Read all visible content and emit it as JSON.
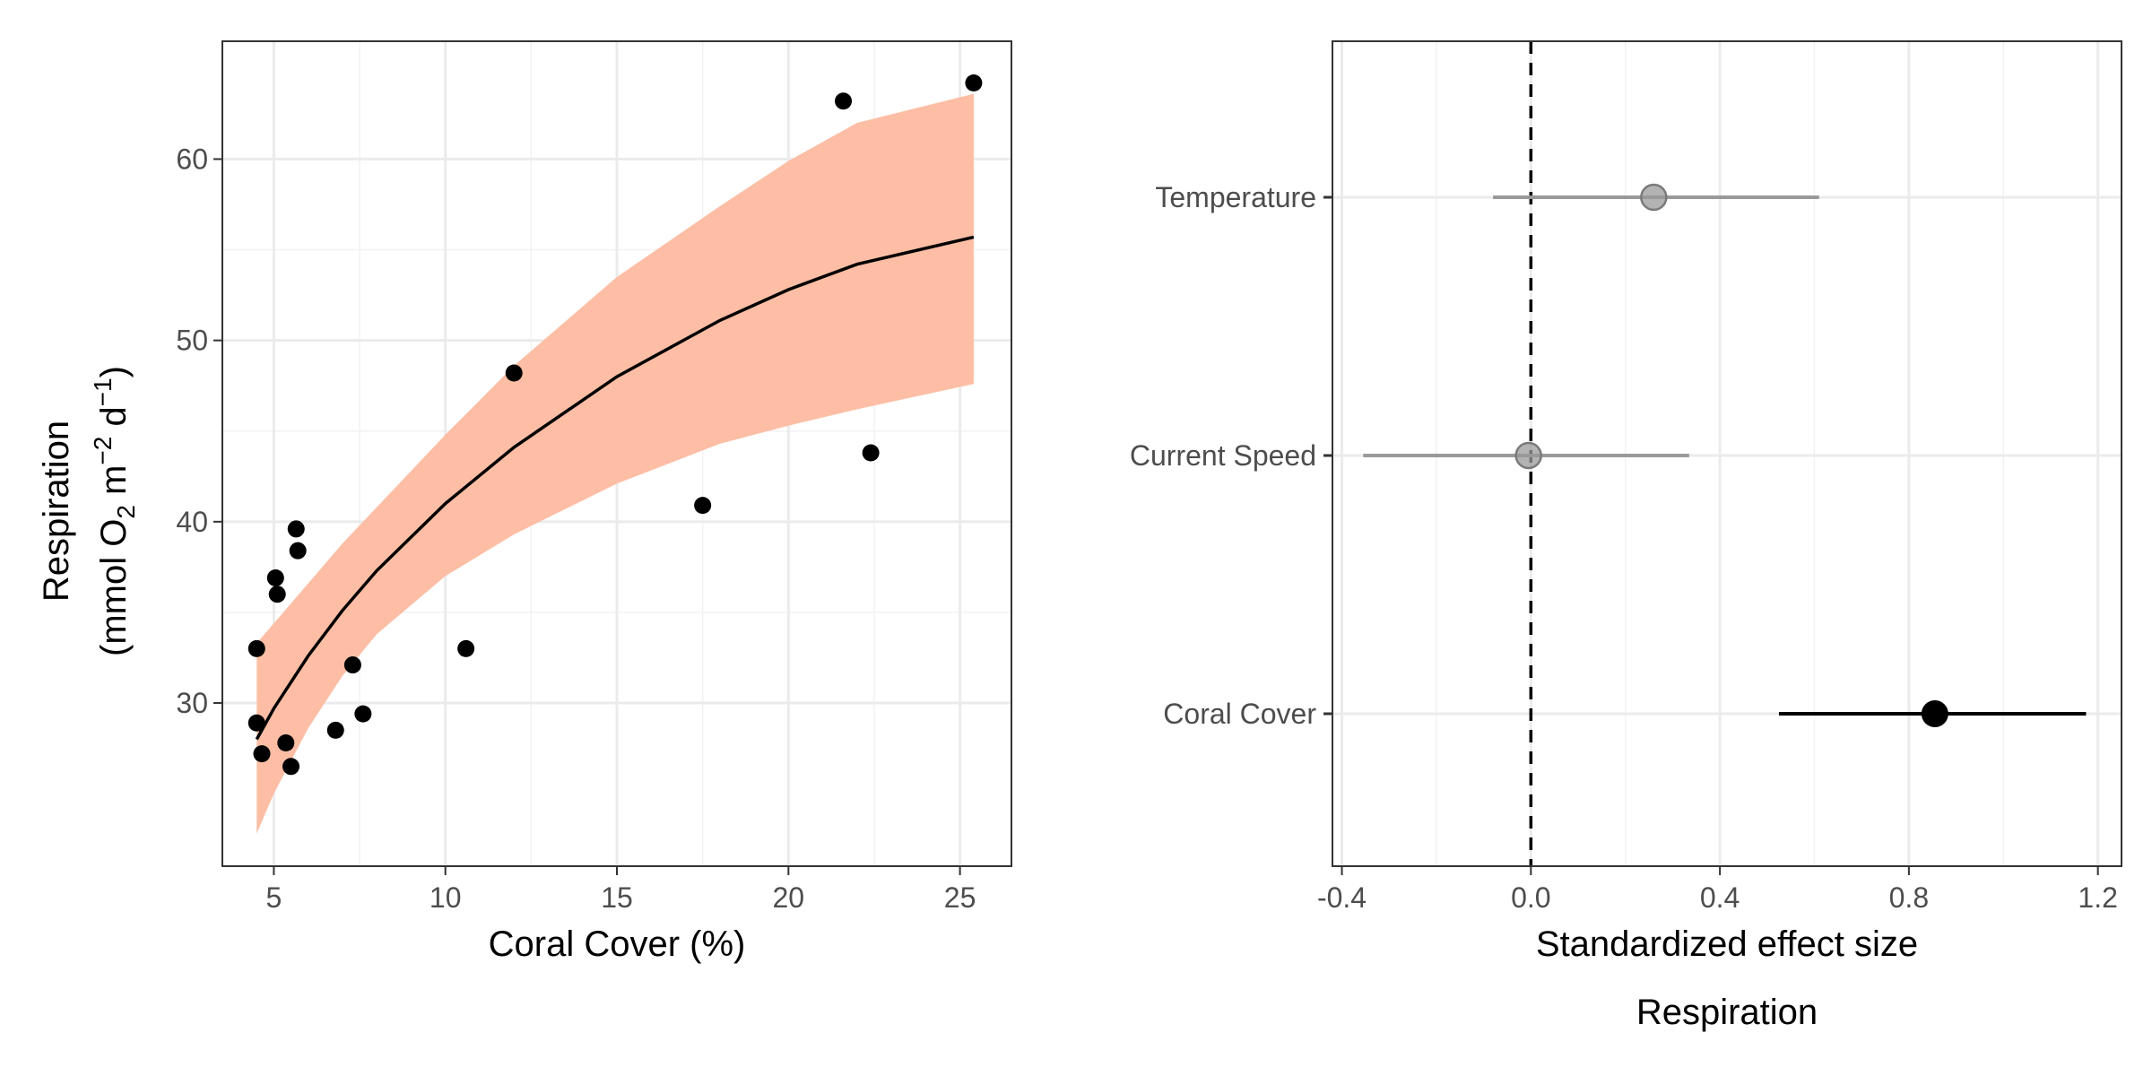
{
  "chart_data": [
    {
      "type": "scatter",
      "xlabel": "Coral Cover (%)",
      "ylabel": {
        "line1": "Respiration",
        "prefix": "(mmol O",
        "sub": "2",
        "mid1": " m",
        "sup1": "−2",
        "mid2": " d",
        "sup2": "−1",
        "suffix": ")"
      },
      "xlim": [
        3.5,
        26.5
      ],
      "ylim": [
        21,
        66.5
      ],
      "xticks": [
        5,
        10,
        15,
        20,
        25
      ],
      "yticks": [
        30,
        40,
        50,
        60
      ],
      "grid": true,
      "points": [
        {
          "x": 4.5,
          "y": 33.0
        },
        {
          "x": 4.5,
          "y": 28.9
        },
        {
          "x": 4.65,
          "y": 27.2
        },
        {
          "x": 5.05,
          "y": 36.9
        },
        {
          "x": 5.1,
          "y": 36.0
        },
        {
          "x": 5.35,
          "y": 27.8
        },
        {
          "x": 5.5,
          "y": 26.5
        },
        {
          "x": 5.65,
          "y": 39.6
        },
        {
          "x": 5.7,
          "y": 38.4
        },
        {
          "x": 6.8,
          "y": 28.5
        },
        {
          "x": 7.3,
          "y": 32.1
        },
        {
          "x": 7.6,
          "y": 29.4
        },
        {
          "x": 10.6,
          "y": 33.0
        },
        {
          "x": 12.0,
          "y": 48.2
        },
        {
          "x": 17.5,
          "y": 40.9
        },
        {
          "x": 21.6,
          "y": 63.2
        },
        {
          "x": 22.4,
          "y": 43.8
        },
        {
          "x": 25.4,
          "y": 64.2
        }
      ],
      "fit": {
        "x": [
          4.5,
          5,
          6,
          7,
          8,
          10,
          12,
          15,
          18,
          20,
          22,
          25.4
        ],
        "y": [
          28.0,
          29.7,
          32.6,
          35.1,
          37.3,
          41.0,
          44.1,
          48.0,
          51.1,
          52.8,
          54.2,
          55.7
        ]
      },
      "band": {
        "x": [
          4.5,
          5,
          6,
          7,
          8,
          10,
          12,
          15,
          18,
          20,
          22,
          25.4
        ],
        "lower": [
          22.8,
          25.0,
          28.6,
          31.5,
          33.8,
          37.0,
          39.3,
          42.1,
          44.3,
          45.3,
          46.2,
          47.6
        ],
        "upper": [
          33.3,
          34.4,
          36.6,
          38.8,
          40.8,
          44.8,
          48.6,
          53.5,
          57.4,
          59.9,
          62.0,
          63.6
        ]
      },
      "colors": {
        "band": "#fdbea5",
        "line": "#000000",
        "points": "#000000"
      }
    },
    {
      "type": "forest",
      "xlabel": "Standardized effect size",
      "caption": "Respiration",
      "xlim": [
        -0.42,
        1.25
      ],
      "xticks": [
        -0.4,
        0.0,
        0.4,
        0.8,
        1.2
      ],
      "xtick_labels": [
        "-0.4",
        "0.0",
        "0.4",
        "0.8",
        "1.2"
      ],
      "grid": true,
      "reference_line": 0,
      "categories": [
        "Temperature",
        "Current Speed",
        "Coral Cover"
      ],
      "estimates": [
        {
          "name": "Temperature",
          "estimate": 0.26,
          "lower": -0.08,
          "upper": 0.61,
          "significant": false
        },
        {
          "name": "Current Speed",
          "estimate": -0.005,
          "lower": -0.355,
          "upper": 0.335,
          "significant": false
        },
        {
          "name": "Coral Cover",
          "estimate": 0.855,
          "lower": 0.525,
          "upper": 1.175,
          "significant": true
        }
      ],
      "colors": {
        "significant": "#000000",
        "nonsignificant": "#999999",
        "reference": "#000000"
      }
    }
  ]
}
